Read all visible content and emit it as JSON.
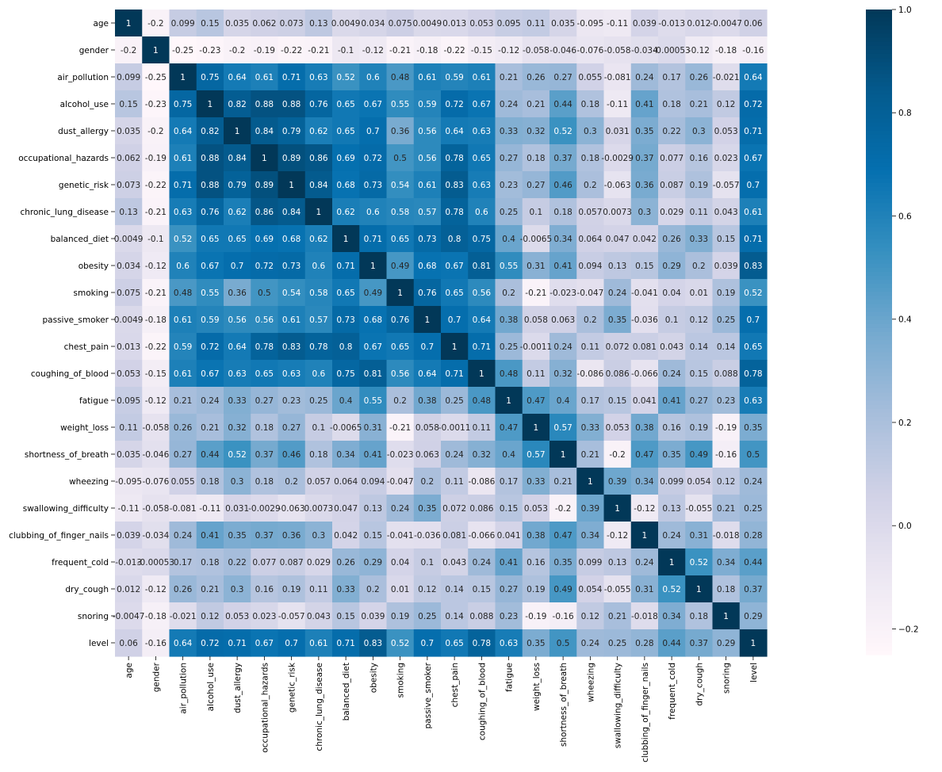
{
  "chart_data": {
    "type": "heatmap",
    "labels": [
      "age",
      "gender",
      "air_pollution",
      "alcohol_use",
      "dust_allergy",
      "occupational_hazards",
      "genetic_risk",
      "chronic_lung_disease",
      "balanced_diet",
      "obesity",
      "smoking",
      "passive_smoker",
      "chest_pain",
      "coughing_of_blood",
      "fatigue",
      "weight_loss",
      "shortness_of_breath",
      "wheezing",
      "swallowing_difficulty",
      "clubbing_of_finger_nails",
      "frequent_cold",
      "dry_cough",
      "snoring",
      "level"
    ],
    "annotations": [
      [
        "1",
        "-0.2",
        "0.099",
        "0.15",
        "0.035",
        "0.062",
        "0.073",
        "0.13",
        "0.0049",
        "0.034",
        "0.075",
        "0.0049",
        "0.013",
        "0.053",
        "0.095",
        "0.11",
        "0.035",
        "-0.095",
        "-0.11",
        "0.039",
        "-0.013",
        "0.012",
        "-0.0047",
        "0.06"
      ],
      [
        "-0.2",
        "1",
        "-0.25",
        "-0.23",
        "-0.2",
        "-0.19",
        "-0.22",
        "-0.21",
        "-0.1",
        "-0.12",
        "-0.21",
        "-0.18",
        "-0.22",
        "-0.15",
        "-0.12",
        "-0.058",
        "-0.046",
        "-0.076",
        "-0.058",
        "-0.034",
        "-0.00053",
        "-0.12",
        "-0.18",
        "-0.16"
      ],
      [
        "0.099",
        "-0.25",
        "1",
        "0.75",
        "0.64",
        "0.61",
        "0.71",
        "0.63",
        "0.52",
        "0.6",
        "0.48",
        "0.61",
        "0.59",
        "0.61",
        "0.21",
        "0.26",
        "0.27",
        "0.055",
        "-0.081",
        "0.24",
        "0.17",
        "0.26",
        "-0.021",
        "0.64"
      ],
      [
        "0.15",
        "-0.23",
        "0.75",
        "1",
        "0.82",
        "0.88",
        "0.88",
        "0.76",
        "0.65",
        "0.67",
        "0.55",
        "0.59",
        "0.72",
        "0.67",
        "0.24",
        "0.21",
        "0.44",
        "0.18",
        "-0.11",
        "0.41",
        "0.18",
        "0.21",
        "0.12",
        "0.72"
      ],
      [
        "0.035",
        "-0.2",
        "0.64",
        "0.82",
        "1",
        "0.84",
        "0.79",
        "0.62",
        "0.65",
        "0.7",
        "0.36",
        "0.56",
        "0.64",
        "0.63",
        "0.33",
        "0.32",
        "0.52",
        "0.3",
        "0.031",
        "0.35",
        "0.22",
        "0.3",
        "0.053",
        "0.71"
      ],
      [
        "0.062",
        "-0.19",
        "0.61",
        "0.88",
        "0.84",
        "1",
        "0.89",
        "0.86",
        "0.69",
        "0.72",
        "0.5",
        "0.56",
        "0.78",
        "0.65",
        "0.27",
        "0.18",
        "0.37",
        "0.18",
        "-0.0029",
        "0.37",
        "0.077",
        "0.16",
        "0.023",
        "0.67"
      ],
      [
        "0.073",
        "-0.22",
        "0.71",
        "0.88",
        "0.79",
        "0.89",
        "1",
        "0.84",
        "0.68",
        "0.73",
        "0.54",
        "0.61",
        "0.83",
        "0.63",
        "0.23",
        "0.27",
        "0.46",
        "0.2",
        "-0.063",
        "0.36",
        "0.087",
        "0.19",
        "-0.057",
        "0.7"
      ],
      [
        "0.13",
        "-0.21",
        "0.63",
        "0.76",
        "0.62",
        "0.86",
        "0.84",
        "1",
        "0.62",
        "0.6",
        "0.58",
        "0.57",
        "0.78",
        "0.6",
        "0.25",
        "0.1",
        "0.18",
        "0.057",
        "0.0073",
        "0.3",
        "0.029",
        "0.11",
        "0.043",
        "0.61"
      ],
      [
        "0.0049",
        "-0.1",
        "0.52",
        "0.65",
        "0.65",
        "0.69",
        "0.68",
        "0.62",
        "1",
        "0.71",
        "0.65",
        "0.73",
        "0.8",
        "0.75",
        "0.4",
        "-0.0065",
        "0.34",
        "0.064",
        "0.047",
        "0.042",
        "0.26",
        "0.33",
        "0.15",
        "0.71"
      ],
      [
        "0.034",
        "-0.12",
        "0.6",
        "0.67",
        "0.7",
        "0.72",
        "0.73",
        "0.6",
        "0.71",
        "1",
        "0.49",
        "0.68",
        "0.67",
        "0.81",
        "0.55",
        "0.31",
        "0.41",
        "0.094",
        "0.13",
        "0.15",
        "0.29",
        "0.2",
        "0.039",
        "0.83"
      ],
      [
        "0.075",
        "-0.21",
        "0.48",
        "0.55",
        "0.36",
        "0.5",
        "0.54",
        "0.58",
        "0.65",
        "0.49",
        "1",
        "0.76",
        "0.65",
        "0.56",
        "0.2",
        "-0.21",
        "-0.023",
        "-0.047",
        "0.24",
        "-0.041",
        "0.04",
        "0.01",
        "0.19",
        "0.52"
      ],
      [
        "0.0049",
        "-0.18",
        "0.61",
        "0.59",
        "0.56",
        "0.56",
        "0.61",
        "0.57",
        "0.73",
        "0.68",
        "0.76",
        "1",
        "0.7",
        "0.64",
        "0.38",
        "0.058",
        "0.063",
        "0.2",
        "0.35",
        "-0.036",
        "0.1",
        "0.12",
        "0.25",
        "0.7"
      ],
      [
        "0.013",
        "-0.22",
        "0.59",
        "0.72",
        "0.64",
        "0.78",
        "0.83",
        "0.78",
        "0.8",
        "0.67",
        "0.65",
        "0.7",
        "1",
        "0.71",
        "0.25",
        "-0.0011",
        "0.24",
        "0.11",
        "0.072",
        "0.081",
        "0.043",
        "0.14",
        "0.14",
        "0.65"
      ],
      [
        "0.053",
        "-0.15",
        "0.61",
        "0.67",
        "0.63",
        "0.65",
        "0.63",
        "0.6",
        "0.75",
        "0.81",
        "0.56",
        "0.64",
        "0.71",
        "1",
        "0.48",
        "0.11",
        "0.32",
        "-0.086",
        "0.086",
        "-0.066",
        "0.24",
        "0.15",
        "0.088",
        "0.78"
      ],
      [
        "0.095",
        "-0.12",
        "0.21",
        "0.24",
        "0.33",
        "0.27",
        "0.23",
        "0.25",
        "0.4",
        "0.55",
        "0.2",
        "0.38",
        "0.25",
        "0.48",
        "1",
        "0.47",
        "0.4",
        "0.17",
        "0.15",
        "0.041",
        "0.41",
        "0.27",
        "0.23",
        "0.63"
      ],
      [
        "0.11",
        "-0.058",
        "0.26",
        "0.21",
        "0.32",
        "0.18",
        "0.27",
        "0.1",
        "-0.0065",
        "0.31",
        "-0.21",
        "0.058",
        "-0.0011",
        "0.11",
        "0.47",
        "1",
        "0.57",
        "0.33",
        "0.053",
        "0.38",
        "0.16",
        "0.19",
        "-0.19",
        "0.35"
      ],
      [
        "0.035",
        "-0.046",
        "0.27",
        "0.44",
        "0.52",
        "0.37",
        "0.46",
        "0.18",
        "0.34",
        "0.41",
        "-0.023",
        "0.063",
        "0.24",
        "0.32",
        "0.4",
        "0.57",
        "1",
        "0.21",
        "-0.2",
        "0.47",
        "0.35",
        "0.49",
        "-0.16",
        "0.5"
      ],
      [
        "-0.095",
        "-0.076",
        "0.055",
        "0.18",
        "0.3",
        "0.18",
        "0.2",
        "0.057",
        "0.064",
        "0.094",
        "-0.047",
        "0.2",
        "0.11",
        "-0.086",
        "0.17",
        "0.33",
        "0.21",
        "1",
        "0.39",
        "0.34",
        "0.099",
        "0.054",
        "0.12",
        "0.24"
      ],
      [
        "-0.11",
        "-0.058",
        "-0.081",
        "-0.11",
        "0.031",
        "-0.0029",
        "-0.063",
        "0.0073",
        "0.047",
        "0.13",
        "0.24",
        "0.35",
        "0.072",
        "0.086",
        "0.15",
        "0.053",
        "-0.2",
        "0.39",
        "1",
        "-0.12",
        "0.13",
        "-0.055",
        "0.21",
        "0.25"
      ],
      [
        "0.039",
        "-0.034",
        "0.24",
        "0.41",
        "0.35",
        "0.37",
        "0.36",
        "0.3",
        "0.042",
        "0.15",
        "-0.041",
        "-0.036",
        "0.081",
        "-0.066",
        "0.041",
        "0.38",
        "0.47",
        "0.34",
        "-0.12",
        "1",
        "0.24",
        "0.31",
        "-0.018",
        "0.28"
      ],
      [
        "-0.013",
        "-0.00053",
        "0.17",
        "0.18",
        "0.22",
        "0.077",
        "0.087",
        "0.029",
        "0.26",
        "0.29",
        "0.04",
        "0.1",
        "0.043",
        "0.24",
        "0.41",
        "0.16",
        "0.35",
        "0.099",
        "0.13",
        "0.24",
        "1",
        "0.52",
        "0.34",
        "0.44"
      ],
      [
        "0.012",
        "-0.12",
        "0.26",
        "0.21",
        "0.3",
        "0.16",
        "0.19",
        "0.11",
        "0.33",
        "0.2",
        "0.01",
        "0.12",
        "0.14",
        "0.15",
        "0.27",
        "0.19",
        "0.49",
        "0.054",
        "-0.055",
        "0.31",
        "0.52",
        "1",
        "0.18",
        "0.37"
      ],
      [
        "-0.0047",
        "-0.18",
        "-0.021",
        "0.12",
        "0.053",
        "0.023",
        "-0.057",
        "0.043",
        "0.15",
        "0.039",
        "0.19",
        "0.25",
        "0.14",
        "0.088",
        "0.23",
        "-0.19",
        "-0.16",
        "0.12",
        "0.21",
        "-0.018",
        "0.34",
        "0.18",
        "1",
        "0.29"
      ],
      [
        "0.06",
        "-0.16",
        "0.64",
        "0.72",
        "0.71",
        "0.67",
        "0.7",
        "0.61",
        "0.71",
        "0.83",
        "0.52",
        "0.7",
        "0.65",
        "0.78",
        "0.63",
        "0.35",
        "0.5",
        "0.24",
        "0.25",
        "0.28",
        "0.44",
        "0.37",
        "0.29",
        "1"
      ]
    ],
    "vmin": -0.25,
    "vmax": 1.0,
    "colormap": "PuBu",
    "colormap_stops": [
      "#fff7fb",
      "#ece7f2",
      "#d0d1e6",
      "#a6bddb",
      "#74a9cf",
      "#3690c0",
      "#0570b0",
      "#045a8d",
      "#023858"
    ],
    "colorbar_ticks": [
      "1.0",
      "0.8",
      "0.6",
      "0.4",
      "0.2",
      "0.0",
      "−0.2"
    ],
    "colorbar_tick_values": [
      1.0,
      0.8,
      0.6,
      0.4,
      0.2,
      0.0,
      -0.2
    ],
    "title": "",
    "xlabel": "",
    "ylabel": ""
  }
}
